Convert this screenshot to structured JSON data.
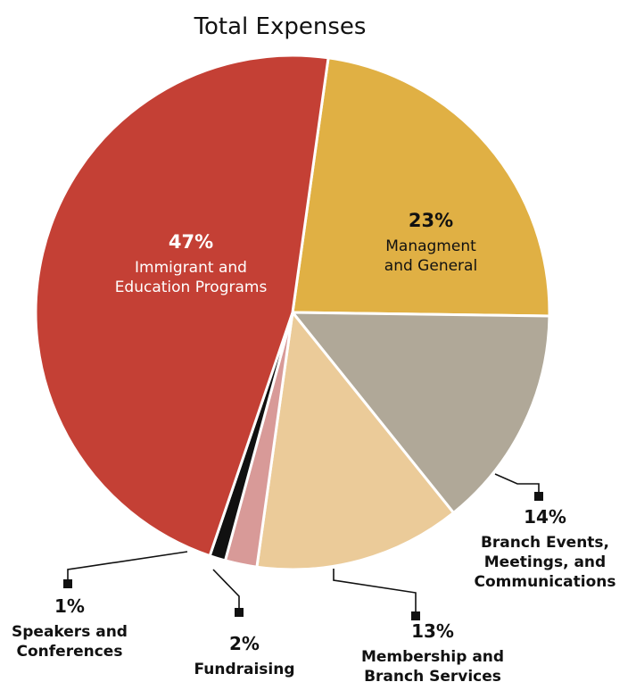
{
  "chart_data": {
    "type": "pie",
    "title": "Total Expenses",
    "colors": {
      "immigrant": "#c44035",
      "management": "#e0b044",
      "branch_events": "#b0a898",
      "membership": "#ebcb99",
      "fundraising": "#d89a98",
      "speakers": "#111111"
    },
    "slices": [
      {
        "key": "management",
        "value": 23,
        "pct_label": "23%",
        "label_lines": [
          "Managment",
          "and General"
        ]
      },
      {
        "key": "branch_events",
        "value": 14,
        "pct_label": "14%",
        "label_lines": [
          "Branch Events,",
          "Meetings, and",
          "Communications"
        ]
      },
      {
        "key": "membership",
        "value": 13,
        "pct_label": "13%",
        "label_lines": [
          "Membership and",
          "Branch Services"
        ]
      },
      {
        "key": "fundraising",
        "value": 2,
        "pct_label": "2%",
        "label_lines": [
          "Fundraising"
        ]
      },
      {
        "key": "speakers",
        "value": 1,
        "pct_label": "1%",
        "label_lines": [
          "Speakers and",
          "Conferences"
        ]
      },
      {
        "key": "immigrant",
        "value": 47,
        "pct_label": "47%",
        "label_lines": [
          "Immigrant and",
          "Education Programs"
        ]
      }
    ]
  }
}
